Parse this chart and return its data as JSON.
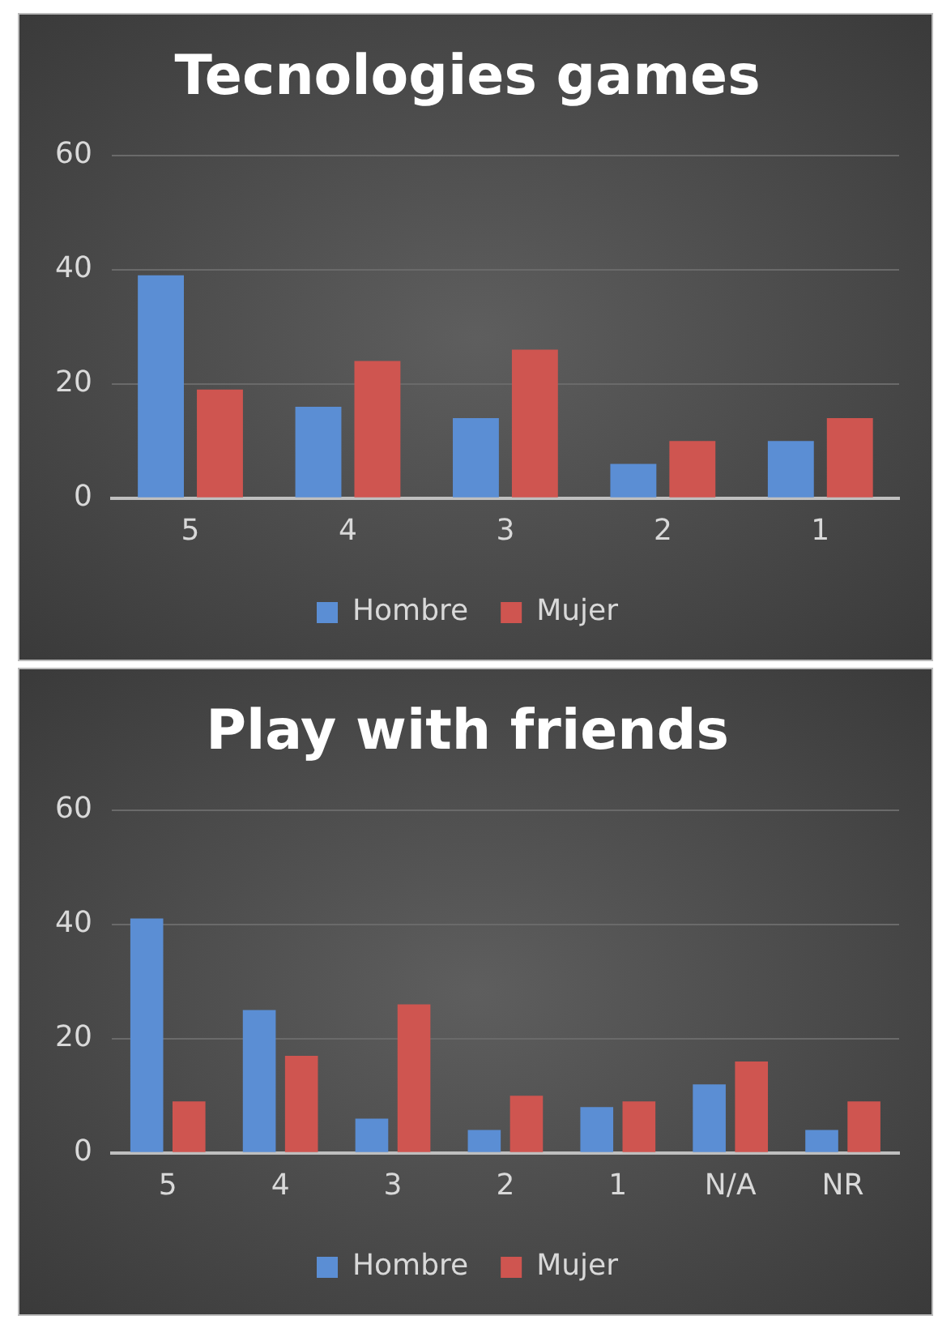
{
  "chart_data": [
    {
      "type": "bar",
      "title": "Tecnologies games",
      "categories": [
        "5",
        "4",
        "3",
        "2",
        "1"
      ],
      "series": [
        {
          "name": "Hombre",
          "color": "#5b8ed4",
          "values": [
            39,
            16,
            14,
            6,
            10
          ]
        },
        {
          "name": "Mujer",
          "color": "#cf5550",
          "values": [
            19,
            24,
            26,
            10,
            14
          ]
        }
      ],
      "ylim": [
        0,
        60
      ],
      "yticks": [
        0,
        20,
        40,
        60
      ],
      "grid": "y",
      "legend": "bottom"
    },
    {
      "type": "bar",
      "title": "Play with friends",
      "categories": [
        "5",
        "4",
        "3",
        "2",
        "1",
        "N/A",
        "NR"
      ],
      "series": [
        {
          "name": "Hombre",
          "color": "#5b8ed4",
          "values": [
            41,
            25,
            6,
            4,
            8,
            12,
            4
          ]
        },
        {
          "name": "Mujer",
          "color": "#cf5550",
          "values": [
            9,
            17,
            26,
            10,
            9,
            16,
            9
          ]
        }
      ],
      "ylim": [
        0,
        60
      ],
      "yticks": [
        0,
        20,
        40,
        60
      ],
      "grid": "y",
      "legend": "bottom"
    }
  ]
}
